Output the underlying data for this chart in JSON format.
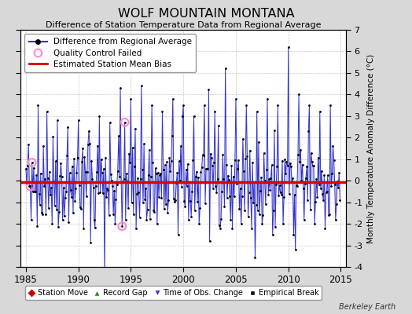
{
  "title": "WOLF MOUNTAIN MONTANA",
  "subtitle": "Difference of Station Temperature Data from Regional Average",
  "ylabel": "Monthly Temperature Anomaly Difference (°C)",
  "xlabel_years": [
    1985,
    1990,
    1995,
    2000,
    2005,
    2010,
    2015
  ],
  "xlim": [
    1984.5,
    2015.5
  ],
  "ylim": [
    -4,
    7
  ],
  "yticks": [
    -4,
    -3,
    -2,
    -1,
    0,
    1,
    2,
    3,
    4,
    5,
    6,
    7
  ],
  "bias_value": -0.05,
  "background_color": "#d8d8d8",
  "plot_bg_color": "#ffffff",
  "line_color": "#3333cc",
  "line_fill_color": "#aaaaee",
  "dot_color": "#000000",
  "bias_color": "#dd0000",
  "qc_color": "#ff88cc",
  "watermark": "Berkeley Earth",
  "seed": 42
}
